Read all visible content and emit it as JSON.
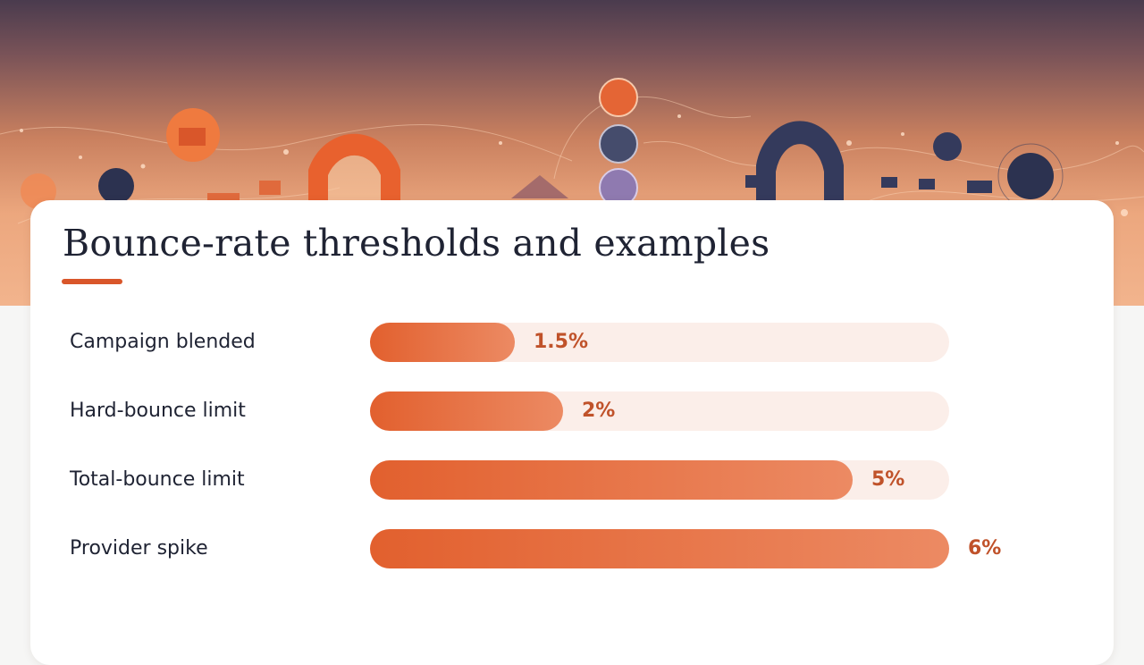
{
  "title": "Bounce-rate thresholds and examples",
  "colors": {
    "accent": "#d9562a",
    "bar": "#e2602e",
    "track": "#fbeee9",
    "value": "#c0522a",
    "text": "#1f2333"
  },
  "chart_data": {
    "type": "bar",
    "orientation": "horizontal",
    "title": "Bounce-rate thresholds and examples",
    "categories": [
      "Campaign blended",
      "Hard-bounce limit",
      "Total-bounce limit",
      "Provider spike"
    ],
    "values": [
      1.5,
      2,
      5,
      6
    ],
    "value_labels": [
      "1.5%",
      "2%",
      "5%",
      "6%"
    ],
    "xlim": [
      0,
      6
    ],
    "grid": false,
    "legend": "none"
  }
}
